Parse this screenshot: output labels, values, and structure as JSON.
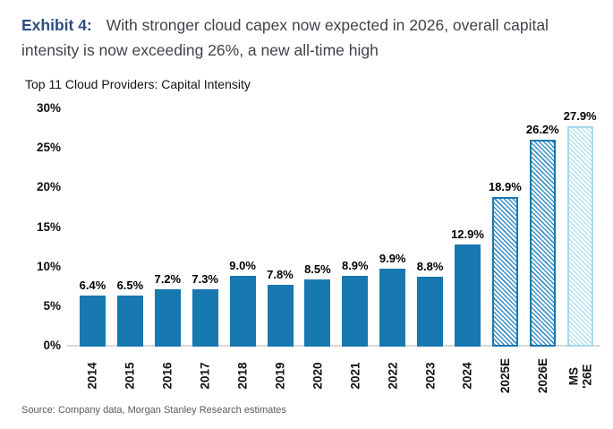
{
  "header": {
    "exhibit_label": "Exhibit 4:",
    "line1": "With stronger cloud capex now expected in 2026, overall capital",
    "line2": "intensity is now exceeding 26%, a new all-time high"
  },
  "chart_data": {
    "type": "bar",
    "title": "Top 11 Cloud Providers: Capital Intensity",
    "categories": [
      "2014",
      "2015",
      "2016",
      "2017",
      "2018",
      "2019",
      "2020",
      "2021",
      "2022",
      "2023",
      "2024",
      "2025E",
      "2026E",
      "MS\n'26E"
    ],
    "values": [
      6.4,
      6.5,
      7.2,
      7.3,
      9.0,
      7.8,
      8.5,
      8.9,
      9.9,
      8.8,
      12.9,
      18.9,
      26.2,
      27.9
    ],
    "value_labels": [
      "6.4%",
      "6.5%",
      "7.2%",
      "7.3%",
      "9.0%",
      "7.8%",
      "8.5%",
      "8.9%",
      "9.9%",
      "8.8%",
      "12.9%",
      "18.9%",
      "26.2%",
      "27.9%"
    ],
    "bar_styles": [
      "solid",
      "solid",
      "solid",
      "solid",
      "solid",
      "solid",
      "solid",
      "solid",
      "solid",
      "solid",
      "solid",
      "hatch",
      "hatch",
      "hatch_light"
    ],
    "ylim": [
      0,
      30
    ],
    "ytick_step": 5,
    "ytick_labels": [
      "0%",
      "5%",
      "10%",
      "15%",
      "20%",
      "25%",
      "30%"
    ],
    "grid": "off",
    "legend": "none",
    "colors": {
      "bar_solid": "#1878b0",
      "bar_hatch_stripe": "#3c8fc4",
      "bar_hatch_light_stripe": "#b9e2f2",
      "axis_line": "#d8d8d8"
    }
  },
  "footer": {
    "source": "Source: Company data, Morgan Stanley Research estimates"
  }
}
